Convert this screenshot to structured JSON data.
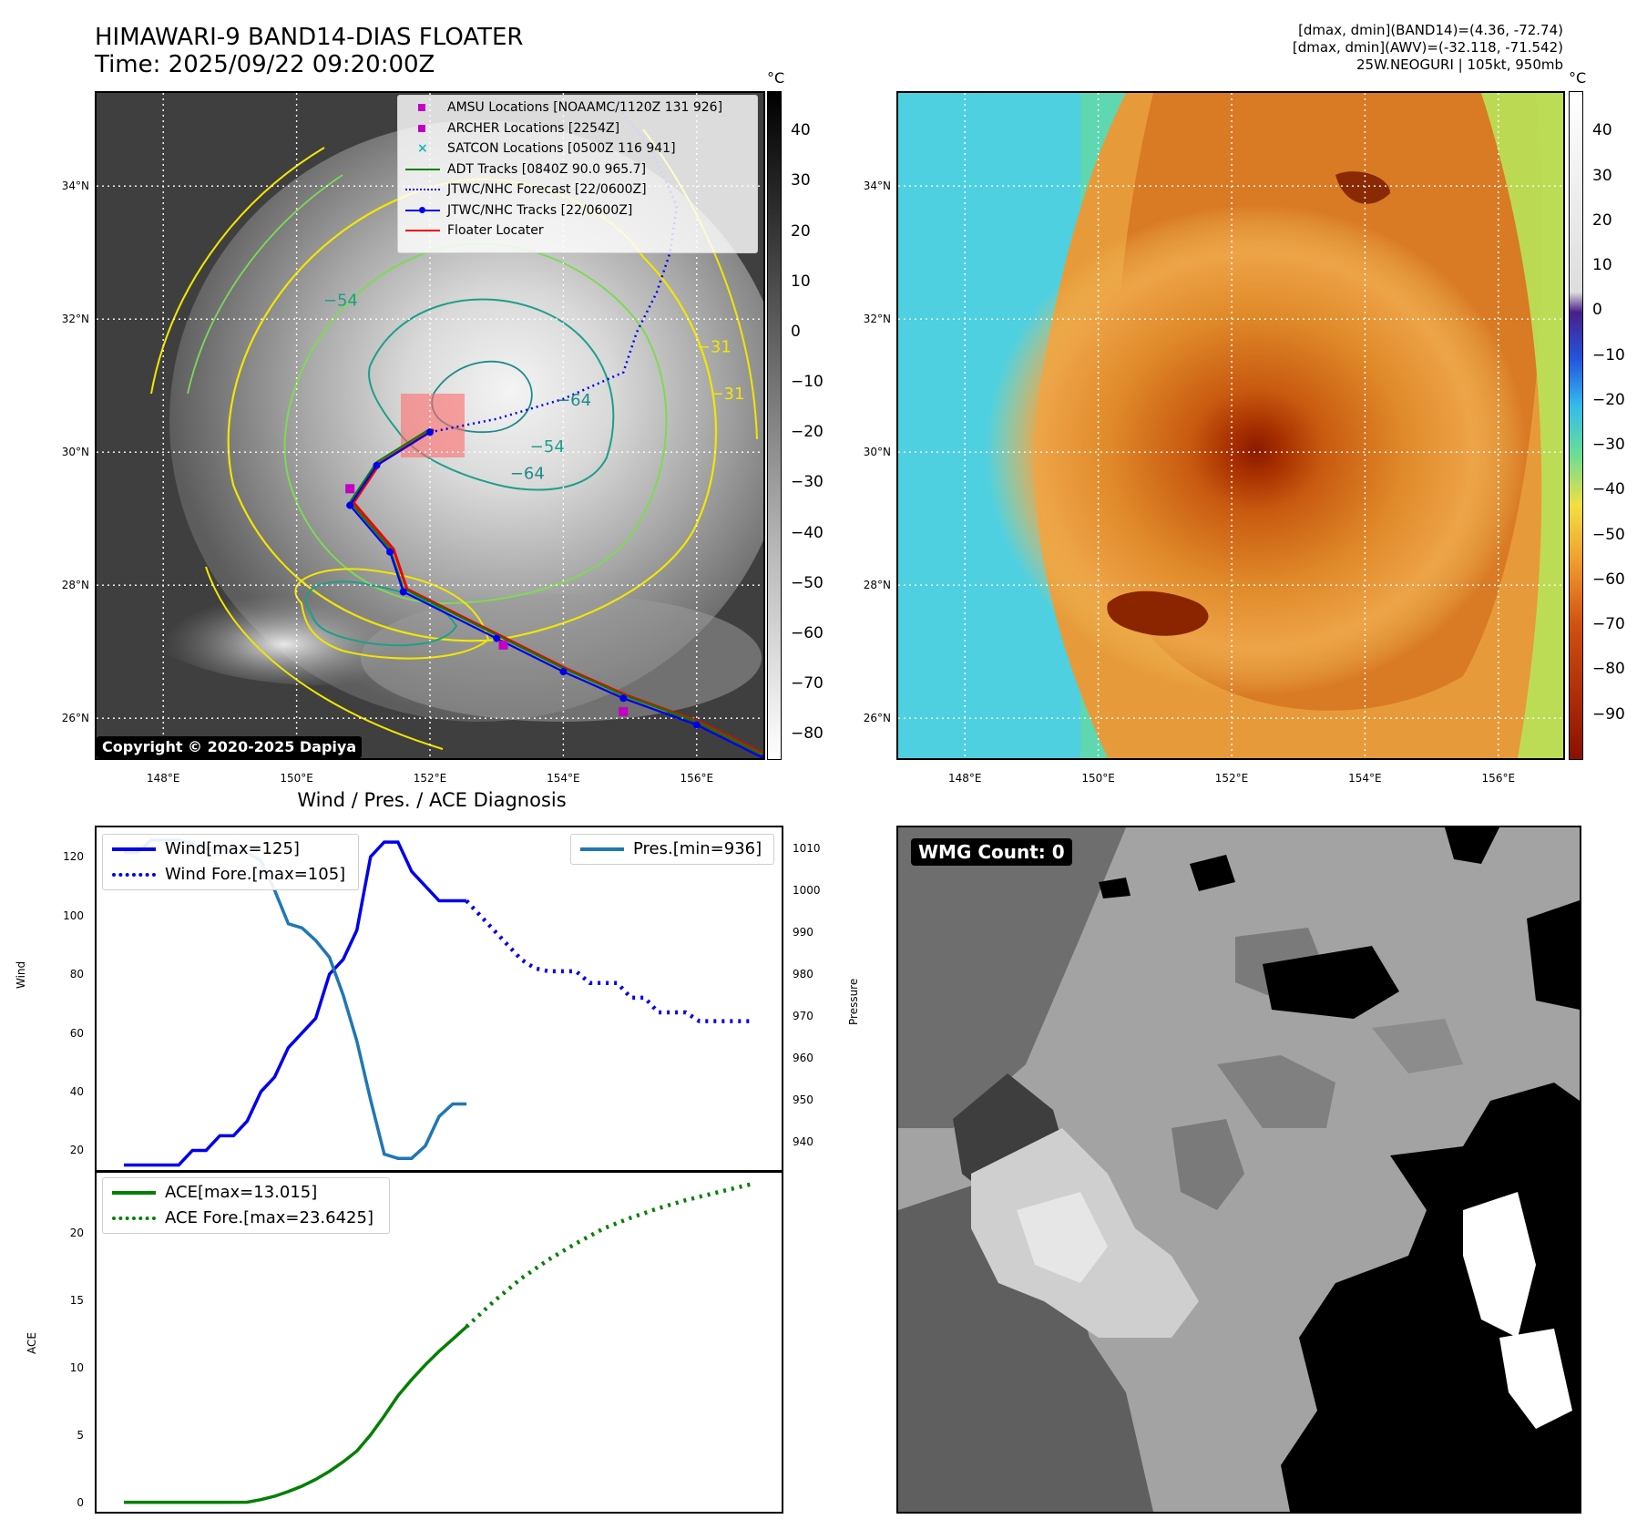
{
  "header": {
    "title_line1": "HIMAWARI-9 BAND14-DIAS FLOATER",
    "title_line2": "Time: 2025/09/22 09:20:00Z",
    "info_line1": "[dmax, dmin](BAND14)=(4.36, -72.74)",
    "info_line2": "[dmax, dmin](AWV)=(-32.118, -71.542)",
    "info_line3": "25W.NEOGURI | 105kt, 950mb"
  },
  "map": {
    "lon_ticks": [
      "148°E",
      "150°E",
      "152°E",
      "154°E",
      "156°E"
    ],
    "lat_ticks": [
      "34°N",
      "32°N",
      "30°N",
      "28°N",
      "26°N"
    ],
    "copyright": "Copyright © 2020-2025 Dapiya",
    "contour_labels": [
      "−64",
      "−54",
      "−64",
      "−54",
      "−31",
      "−31"
    ],
    "colorbar_unit": "°C",
    "gray_colorbar_ticks": [
      "40",
      "30",
      "20",
      "10",
      "0",
      "−10",
      "−20",
      "−30",
      "−40",
      "−50",
      "−60",
      "−70",
      "−80"
    ],
    "color_colorbar_ticks": [
      "40",
      "30",
      "20",
      "10",
      "0",
      "−10",
      "−20",
      "−30",
      "−40",
      "−50",
      "−60",
      "−70",
      "−80",
      "−90"
    ],
    "legend": [
      {
        "label": "AMSU Locations [NOAAMC/1120Z 131 926]",
        "color": "#c400c4",
        "symbol": "square"
      },
      {
        "label": "ARCHER Locations [2254Z]",
        "color": "#c400c4",
        "symbol": "square"
      },
      {
        "label": "SATCON Locations [0500Z 116 941]",
        "color": "#17b5b5",
        "symbol": "x"
      },
      {
        "label": "ADT Tracks [0840Z 90.0 965.7]",
        "color": "#008000",
        "symbol": "line"
      },
      {
        "label": "JTWC/NHC Forecast [22/0600Z]",
        "color": "#0000ee",
        "symbol": "dotted"
      },
      {
        "label": "JTWC/NHC Tracks [22/0600Z]",
        "color": "#0000ee",
        "symbol": "line-dot"
      },
      {
        "label": "Floater Locater",
        "color": "#ee0000",
        "symbol": "line"
      }
    ],
    "jtwc_track_lonlat": [
      [
        157.0,
        25.4
      ],
      [
        156.0,
        25.9
      ],
      [
        154.9,
        26.3
      ],
      [
        154.0,
        26.7
      ],
      [
        153.0,
        27.2
      ],
      [
        151.6,
        27.9
      ],
      [
        151.4,
        28.5
      ],
      [
        150.8,
        29.2
      ],
      [
        151.2,
        29.8
      ],
      [
        152.0,
        30.3
      ]
    ],
    "jtwc_forecast_lonlat": [
      [
        152.0,
        30.3
      ],
      [
        153.0,
        30.5
      ],
      [
        154.0,
        30.8
      ],
      [
        154.9,
        31.2
      ],
      [
        155.1,
        31.8
      ],
      [
        155.4,
        32.4
      ],
      [
        155.6,
        33.0
      ],
      [
        155.7,
        33.7
      ],
      [
        155.3,
        34.6
      ],
      [
        154.8,
        35.2
      ]
    ],
    "amsu_points_lonlat": [
      [
        150.8,
        29.45
      ],
      [
        153.1,
        27.1
      ],
      [
        154.9,
        26.1
      ]
    ]
  },
  "wmg": {
    "label": "WMG Count: 0"
  },
  "chart_data": [
    {
      "type": "line",
      "title": "Wind / Pres. / ACE Diagnosis",
      "xlabel": "",
      "ylabel": "Wind",
      "y2label": "Pressure",
      "ylim": [
        13,
        130
      ],
      "y2lim": [
        933,
        1015
      ],
      "yticks": [
        "20",
        "40",
        "60",
        "80",
        "100",
        "120"
      ],
      "y2ticks": [
        "940",
        "950",
        "960",
        "970",
        "980",
        "990",
        "1000",
        "1010"
      ],
      "x": [
        0,
        1,
        2,
        3,
        4,
        5,
        6,
        7,
        8,
        9,
        10,
        11,
        12,
        13,
        14,
        15,
        16,
        17,
        18,
        19,
        20,
        21,
        22,
        23,
        24,
        25,
        26,
        27,
        28,
        29,
        30,
        31,
        32,
        33,
        34,
        35,
        36,
        37,
        38,
        39,
        40,
        41,
        42,
        43,
        44,
        45,
        46
      ],
      "series": [
        {
          "name": "Wind[max=125]",
          "axis": "left",
          "style": "solid",
          "color": "#0000ee",
          "x": [
            0,
            1,
            2,
            3,
            4,
            5,
            6,
            7,
            8,
            9,
            10,
            11,
            12,
            13,
            14,
            15,
            16,
            17,
            18,
            19,
            20,
            21,
            22,
            23,
            24,
            25
          ],
          "values": [
            15,
            15,
            15,
            15,
            15,
            20,
            20,
            25,
            25,
            30,
            40,
            45,
            55,
            60,
            65,
            80,
            85,
            95,
            120,
            125,
            125,
            115,
            110,
            105,
            105,
            105
          ]
        },
        {
          "name": "Wind Fore.[max=105]",
          "axis": "left",
          "style": "dotted",
          "color": "#0000ee",
          "x": [
            25,
            26,
            27,
            28,
            29,
            30,
            31,
            32,
            33,
            34,
            35,
            36,
            37,
            38,
            39,
            40,
            41,
            42,
            43,
            44,
            45,
            46
          ],
          "values": [
            105,
            100,
            95,
            90,
            85,
            82,
            81,
            81,
            81,
            77,
            77,
            77,
            72,
            72,
            67,
            67,
            67,
            64,
            64,
            64,
            64,
            64
          ]
        },
        {
          "name": "Pres.[min=936]",
          "axis": "right",
          "style": "solid",
          "color": "#1f77b4",
          "x": [
            0,
            1,
            2,
            3,
            4,
            5,
            6,
            7,
            8,
            9,
            10,
            11,
            12,
            13,
            14,
            15,
            16,
            17,
            18,
            19,
            20,
            21,
            22,
            23,
            24,
            25
          ],
          "values": [
            1009,
            1009,
            1012,
            1012,
            1012,
            1011,
            1010,
            1010,
            1010,
            1009,
            1007,
            1000,
            992,
            991,
            988,
            984,
            975,
            964,
            950,
            937,
            936,
            936,
            939,
            946,
            949,
            949
          ]
        }
      ]
    },
    {
      "type": "line",
      "xlabel": "",
      "ylabel": "ACE",
      "ylim": [
        -0.7,
        24.5
      ],
      "yticks": [
        "0",
        "5",
        "10",
        "15",
        "20"
      ],
      "series": [
        {
          "name": "ACE[max=13.015]",
          "style": "solid",
          "color": "#008000",
          "x": [
            0,
            2,
            4,
            6,
            8,
            9,
            10,
            11,
            12,
            13,
            14,
            15,
            16,
            17,
            18,
            19,
            20,
            21,
            22,
            23,
            24,
            25
          ],
          "values": [
            0,
            0,
            0,
            0,
            0,
            0.01,
            0.2,
            0.45,
            0.8,
            1.2,
            1.7,
            2.3,
            3.0,
            3.8,
            5.0,
            6.4,
            7.9,
            9.1,
            10.2,
            11.2,
            12.1,
            13.015
          ]
        },
        {
          "name": "ACE Fore.[max=23.6425]",
          "style": "dotted",
          "color": "#008000",
          "x": [
            25,
            27,
            29,
            31,
            33,
            35,
            37,
            39,
            41,
            43,
            45,
            46
          ],
          "values": [
            13.015,
            14.9,
            16.6,
            18.0,
            19.2,
            20.3,
            21.1,
            21.8,
            22.4,
            22.9,
            23.4,
            23.6425
          ]
        }
      ]
    }
  ]
}
